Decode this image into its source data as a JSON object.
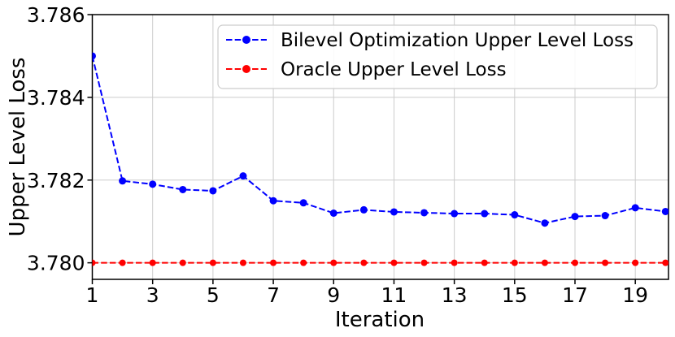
{
  "figure": {
    "background": "#ffffff"
  },
  "colors": {
    "grid": "#cccccc",
    "axis": "#000000",
    "text": "#000000",
    "legend_border": "#cccccc",
    "legend_background": "rgba(255,255,255,0.85)"
  },
  "chart_data": {
    "type": "line",
    "title": "",
    "xlabel": "Iteration",
    "ylabel": "Upper Level Loss",
    "grid": true,
    "legend_position": "upper right",
    "x": [
      1,
      2,
      3,
      4,
      5,
      6,
      7,
      8,
      9,
      10,
      11,
      12,
      13,
      14,
      15,
      16,
      17,
      18,
      19,
      20
    ],
    "xticks": [
      1,
      3,
      5,
      7,
      9,
      11,
      13,
      15,
      17,
      19
    ],
    "yticks": [
      3.78,
      3.782,
      3.784,
      3.786
    ],
    "ytick_labels": [
      "3.780",
      "3.782",
      "3.784",
      "3.786"
    ],
    "xlim": [
      1,
      20.1
    ],
    "ylim": [
      3.7796,
      3.786
    ],
    "series": [
      {
        "name": "Bilevel Optimization Upper Level Loss",
        "color": "#0000ff",
        "linestyle": "dashed",
        "marker": "circle",
        "values": [
          3.785,
          3.78198,
          3.7819,
          3.78177,
          3.78174,
          3.7821,
          3.7815,
          3.78145,
          3.7812,
          3.78128,
          3.78123,
          3.78121,
          3.78119,
          3.78119,
          3.78116,
          3.78096,
          3.78112,
          3.78114,
          3.78133,
          3.78124
        ]
      },
      {
        "name": "Oracle Upper Level Loss",
        "color": "#ff0000",
        "linestyle": "dashed",
        "marker": "circle",
        "values": [
          3.78,
          3.78,
          3.78,
          3.78,
          3.78,
          3.78,
          3.78,
          3.78,
          3.78,
          3.78,
          3.78,
          3.78,
          3.78,
          3.78,
          3.78,
          3.78,
          3.78,
          3.78,
          3.78,
          3.78
        ]
      }
    ]
  }
}
